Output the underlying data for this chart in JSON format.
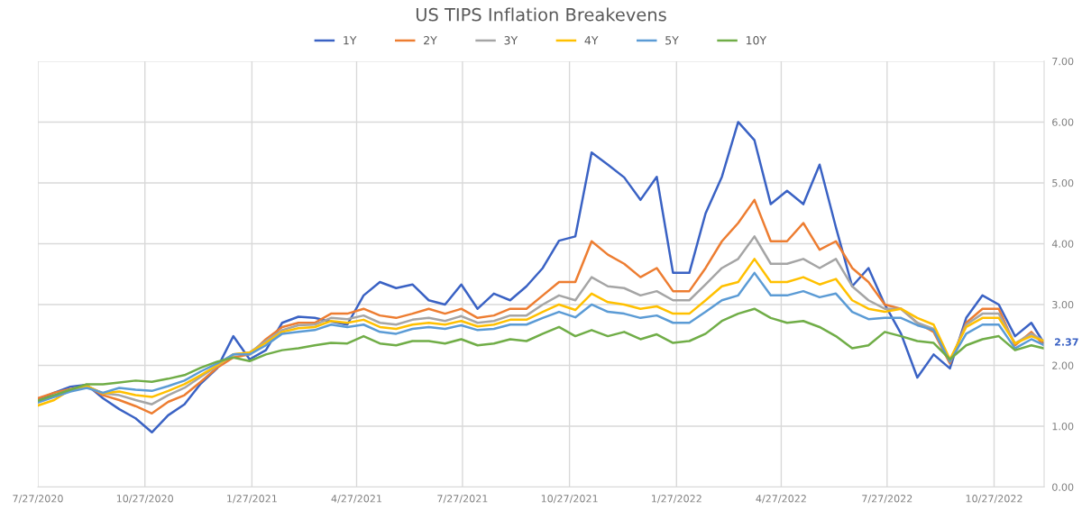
{
  "chart_data": {
    "type": "line",
    "title": "US TIPS Inflation Breakevens",
    "x": [
      "2020-07-27",
      "2020-08-10",
      "2020-08-24",
      "2020-09-07",
      "2020-09-21",
      "2020-10-05",
      "2020-10-19",
      "2020-11-02",
      "2020-11-16",
      "2020-11-30",
      "2020-12-14",
      "2020-12-28",
      "2021-01-11",
      "2021-01-25",
      "2021-02-08",
      "2021-02-22",
      "2021-03-08",
      "2021-03-22",
      "2021-04-05",
      "2021-04-19",
      "2021-05-03",
      "2021-05-17",
      "2021-05-31",
      "2021-06-14",
      "2021-06-28",
      "2021-07-12",
      "2021-07-26",
      "2021-08-09",
      "2021-08-23",
      "2021-09-06",
      "2021-09-20",
      "2021-10-04",
      "2021-10-18",
      "2021-11-01",
      "2021-11-15",
      "2021-11-29",
      "2021-12-13",
      "2021-12-27",
      "2022-01-10",
      "2022-01-24",
      "2022-02-07",
      "2022-02-21",
      "2022-03-07",
      "2022-03-21",
      "2022-04-04",
      "2022-04-18",
      "2022-05-02",
      "2022-05-16",
      "2022-05-30",
      "2022-06-13",
      "2022-06-27",
      "2022-07-11",
      "2022-07-25",
      "2022-08-08",
      "2022-08-22",
      "2022-09-05",
      "2022-09-19",
      "2022-10-03",
      "2022-10-17",
      "2022-10-31",
      "2022-11-14",
      "2022-11-28",
      "2022-12-09"
    ],
    "series": [
      {
        "name": "1Y",
        "color": "#3a62c4",
        "values": [
          1.43,
          1.55,
          1.65,
          1.68,
          1.46,
          1.28,
          1.13,
          0.9,
          1.18,
          1.36,
          1.7,
          1.95,
          2.48,
          2.1,
          2.25,
          2.7,
          2.8,
          2.78,
          2.72,
          2.67,
          3.15,
          3.37,
          3.27,
          3.33,
          3.07,
          3.0,
          3.33,
          2.93,
          3.18,
          3.07,
          3.3,
          3.6,
          4.05,
          4.12,
          5.5,
          5.3,
          5.09,
          4.72,
          5.1,
          3.52,
          3.52,
          4.5,
          5.1,
          6.0,
          5.7,
          4.65,
          4.87,
          4.65,
          5.3,
          4.27,
          3.3,
          3.6,
          3.0,
          2.52,
          1.8,
          2.18,
          1.95,
          2.78,
          3.15,
          3.0,
          2.48,
          2.7,
          2.36
        ]
      },
      {
        "name": "2Y",
        "color": "#ed7d31",
        "values": [
          1.46,
          1.55,
          1.61,
          1.66,
          1.51,
          1.43,
          1.33,
          1.21,
          1.4,
          1.51,
          1.73,
          1.96,
          2.13,
          2.18,
          2.43,
          2.63,
          2.7,
          2.7,
          2.85,
          2.85,
          2.93,
          2.82,
          2.78,
          2.85,
          2.93,
          2.85,
          2.93,
          2.78,
          2.82,
          2.93,
          2.93,
          3.15,
          3.37,
          3.37,
          4.04,
          3.82,
          3.67,
          3.45,
          3.6,
          3.22,
          3.22,
          3.6,
          4.04,
          4.34,
          4.72,
          4.04,
          4.04,
          4.34,
          3.9,
          4.04,
          3.6,
          3.37,
          3.0,
          2.93,
          2.7,
          2.55,
          2.03,
          2.7,
          2.93,
          2.93,
          2.33,
          2.55,
          2.33
        ]
      },
      {
        "name": "3Y",
        "color": "#a5a5a5",
        "values": [
          1.42,
          1.5,
          1.6,
          1.66,
          1.54,
          1.51,
          1.43,
          1.36,
          1.51,
          1.63,
          1.81,
          1.99,
          2.18,
          2.21,
          2.4,
          2.58,
          2.66,
          2.67,
          2.78,
          2.76,
          2.82,
          2.7,
          2.67,
          2.75,
          2.78,
          2.73,
          2.81,
          2.7,
          2.73,
          2.82,
          2.82,
          3.0,
          3.15,
          3.07,
          3.45,
          3.3,
          3.27,
          3.15,
          3.22,
          3.07,
          3.07,
          3.33,
          3.6,
          3.75,
          4.12,
          3.67,
          3.67,
          3.75,
          3.6,
          3.75,
          3.3,
          3.07,
          2.93,
          2.93,
          2.7,
          2.6,
          2.07,
          2.67,
          2.85,
          2.85,
          2.36,
          2.52,
          2.4
        ]
      },
      {
        "name": "4Y",
        "color": "#ffc000",
        "values": [
          1.34,
          1.43,
          1.6,
          1.66,
          1.54,
          1.57,
          1.51,
          1.48,
          1.58,
          1.69,
          1.84,
          2.0,
          2.18,
          2.21,
          2.37,
          2.55,
          2.61,
          2.63,
          2.73,
          2.7,
          2.75,
          2.63,
          2.6,
          2.67,
          2.7,
          2.67,
          2.73,
          2.64,
          2.67,
          2.75,
          2.75,
          2.88,
          3.0,
          2.91,
          3.18,
          3.04,
          3.0,
          2.93,
          2.97,
          2.85,
          2.85,
          3.07,
          3.3,
          3.37,
          3.75,
          3.37,
          3.37,
          3.45,
          3.33,
          3.42,
          3.07,
          2.93,
          2.88,
          2.93,
          2.78,
          2.67,
          2.1,
          2.63,
          2.78,
          2.78,
          2.36,
          2.48,
          2.4
        ]
      },
      {
        "name": "5Y",
        "color": "#5b9bd5",
        "values": [
          1.39,
          1.48,
          1.57,
          1.63,
          1.55,
          1.63,
          1.6,
          1.58,
          1.66,
          1.75,
          1.9,
          2.03,
          2.18,
          2.18,
          2.33,
          2.52,
          2.55,
          2.58,
          2.67,
          2.63,
          2.67,
          2.55,
          2.52,
          2.6,
          2.63,
          2.6,
          2.66,
          2.58,
          2.6,
          2.67,
          2.67,
          2.78,
          2.88,
          2.79,
          3.0,
          2.88,
          2.85,
          2.78,
          2.82,
          2.7,
          2.7,
          2.88,
          3.07,
          3.15,
          3.52,
          3.15,
          3.15,
          3.22,
          3.12,
          3.18,
          2.88,
          2.76,
          2.78,
          2.78,
          2.66,
          2.58,
          2.06,
          2.52,
          2.67,
          2.67,
          2.28,
          2.43,
          2.33
        ]
      },
      {
        "name": "10Y",
        "color": "#70ad47",
        "values": [
          1.42,
          1.51,
          1.6,
          1.69,
          1.69,
          1.72,
          1.75,
          1.73,
          1.78,
          1.84,
          1.96,
          2.06,
          2.13,
          2.07,
          2.18,
          2.25,
          2.28,
          2.33,
          2.37,
          2.36,
          2.48,
          2.36,
          2.33,
          2.4,
          2.4,
          2.36,
          2.43,
          2.33,
          2.36,
          2.43,
          2.4,
          2.52,
          2.63,
          2.48,
          2.58,
          2.48,
          2.55,
          2.43,
          2.51,
          2.37,
          2.4,
          2.52,
          2.73,
          2.85,
          2.93,
          2.78,
          2.7,
          2.73,
          2.63,
          2.48,
          2.28,
          2.33,
          2.55,
          2.48,
          2.4,
          2.37,
          2.1,
          2.33,
          2.43,
          2.48,
          2.25,
          2.33,
          2.28
        ]
      }
    ],
    "xlim": [
      "2020-07-27",
      "2022-12-09"
    ],
    "xticks": [
      {
        "value": "2020-07-27",
        "label": "7/27/2020"
      },
      {
        "value": "2020-10-27",
        "label": "10/27/2020"
      },
      {
        "value": "2021-01-27",
        "label": "1/27/2021"
      },
      {
        "value": "2021-04-27",
        "label": "4/27/2021"
      },
      {
        "value": "2021-07-27",
        "label": "7/27/2021"
      },
      {
        "value": "2021-10-27",
        "label": "10/27/2021"
      },
      {
        "value": "2022-01-27",
        "label": "1/27/2022"
      },
      {
        "value": "2022-04-27",
        "label": "4/27/2022"
      },
      {
        "value": "2022-07-27",
        "label": "7/27/2022"
      },
      {
        "value": "2022-10-27",
        "label": "10/27/2022"
      }
    ],
    "ylim": [
      0,
      7
    ],
    "yticks": [
      {
        "value": 0,
        "label": "0.00"
      },
      {
        "value": 1,
        "label": "1.00"
      },
      {
        "value": 2,
        "label": "2.00"
      },
      {
        "value": 3,
        "label": "3.00"
      },
      {
        "value": 4,
        "label": "4.00"
      },
      {
        "value": 5,
        "label": "5.00"
      },
      {
        "value": 6,
        "label": "6.00"
      },
      {
        "value": 7,
        "label": "7.00"
      }
    ],
    "annotations": [
      {
        "text": "2.37",
        "x": "2022-12-09",
        "y": 2.37
      }
    ],
    "grid": true,
    "legend": "top",
    "marker": "none",
    "line_style": "solid"
  }
}
